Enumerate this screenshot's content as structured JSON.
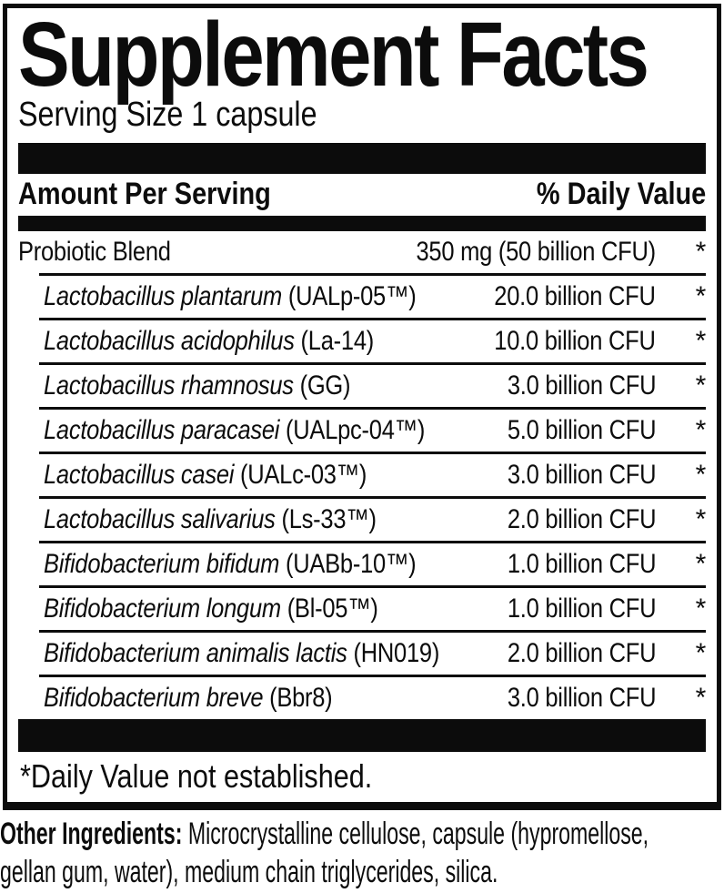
{
  "colors": {
    "ink": "#0c0c0c",
    "paper": "#ffffff"
  },
  "label": {
    "title": "Supplement Facts",
    "serving_size": "Serving Size 1 capsule",
    "columns": {
      "amount": "Amount Per Serving",
      "daily_value": "% Daily Value"
    },
    "rows": [
      {
        "name_italic": "",
        "name_plain": "Probiotic Blend",
        "amount": "350 mg (50 billion CFU)",
        "daily_value": "*"
      },
      {
        "name_italic": "Lactobacillus plantarum",
        "name_plain": " (UALp-05™)",
        "amount": "20.0 billion CFU",
        "daily_value": "*"
      },
      {
        "name_italic": "Lactobacillus acidophilus",
        "name_plain": " (La-14)",
        "amount": "10.0 billion CFU",
        "daily_value": "*"
      },
      {
        "name_italic": "Lactobacillus rhamnosus",
        "name_plain": " (GG)",
        "amount": "3.0 billion CFU",
        "daily_value": "*"
      },
      {
        "name_italic": "Lactobacillus paracasei",
        "name_plain": " (UALpc-04™)",
        "amount": "5.0 billion CFU",
        "daily_value": "*"
      },
      {
        "name_italic": "Lactobacillus casei",
        "name_plain": " (UALc-03™)",
        "amount": "3.0 billion CFU",
        "daily_value": "*"
      },
      {
        "name_italic": "Lactobacillus salivarius",
        "name_plain": " (Ls-33™)",
        "amount": "2.0 billion CFU",
        "daily_value": "*"
      },
      {
        "name_italic": "Bifidobacterium bifidum",
        "name_plain": " (UABb-10™)",
        "amount": "1.0 billion CFU",
        "daily_value": "*"
      },
      {
        "name_italic": "Bifidobacterium longum",
        "name_plain": " (Bl-05™)",
        "amount": "1.0 billion CFU",
        "daily_value": "*"
      },
      {
        "name_italic": "Bifidobacterium animalis lactis",
        "name_plain": " (HN019)",
        "amount": "2.0 billion CFU",
        "daily_value": "*"
      },
      {
        "name_italic": "Bifidobacterium breve",
        "name_plain": " (Bbr8)",
        "amount": "3.0 billion CFU",
        "daily_value": "*"
      }
    ],
    "footnote": "*Daily Value not established."
  },
  "other_ingredients": {
    "label": "Other Ingredients:",
    "line1": " Microcrystalline cellulose, capsule (hypromellose,",
    "line2": "gellan gum, water), medium chain triglycerides, silica."
  }
}
